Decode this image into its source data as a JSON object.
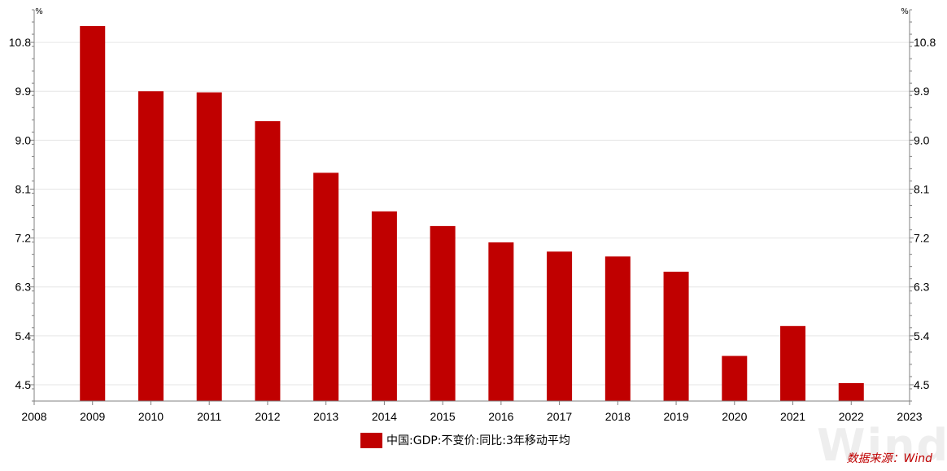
{
  "chart_data": {
    "type": "bar",
    "x_ticks": [
      "2008",
      "2009",
      "2010",
      "2011",
      "2012",
      "2013",
      "2014",
      "2015",
      "2016",
      "2017",
      "2018",
      "2019",
      "2020",
      "2021",
      "2022",
      "2023"
    ],
    "categories": [
      "2009",
      "2010",
      "2011",
      "2012",
      "2013",
      "2014",
      "2015",
      "2016",
      "2017",
      "2018",
      "2019",
      "2020",
      "2021",
      "2022"
    ],
    "series": [
      {
        "name": "中国:GDP:不变价:同比:3年移动平均",
        "color": "#c00000",
        "values": [
          11.1,
          9.9,
          9.88,
          9.35,
          8.4,
          7.69,
          7.42,
          7.12,
          6.95,
          6.86,
          6.58,
          5.03,
          5.58,
          4.53
        ]
      }
    ],
    "y_ticks": [
      "4.5",
      "5.4",
      "6.3",
      "7.2",
      "8.1",
      "9.0",
      "9.9",
      "10.8"
    ],
    "ylim": [
      4.2,
      11.4
    ],
    "y_unit_left": "%",
    "y_unit_right": "%",
    "grid": true,
    "legend_position": "bottom-center",
    "source": "数据来源：Wind",
    "watermark": "Wind"
  }
}
